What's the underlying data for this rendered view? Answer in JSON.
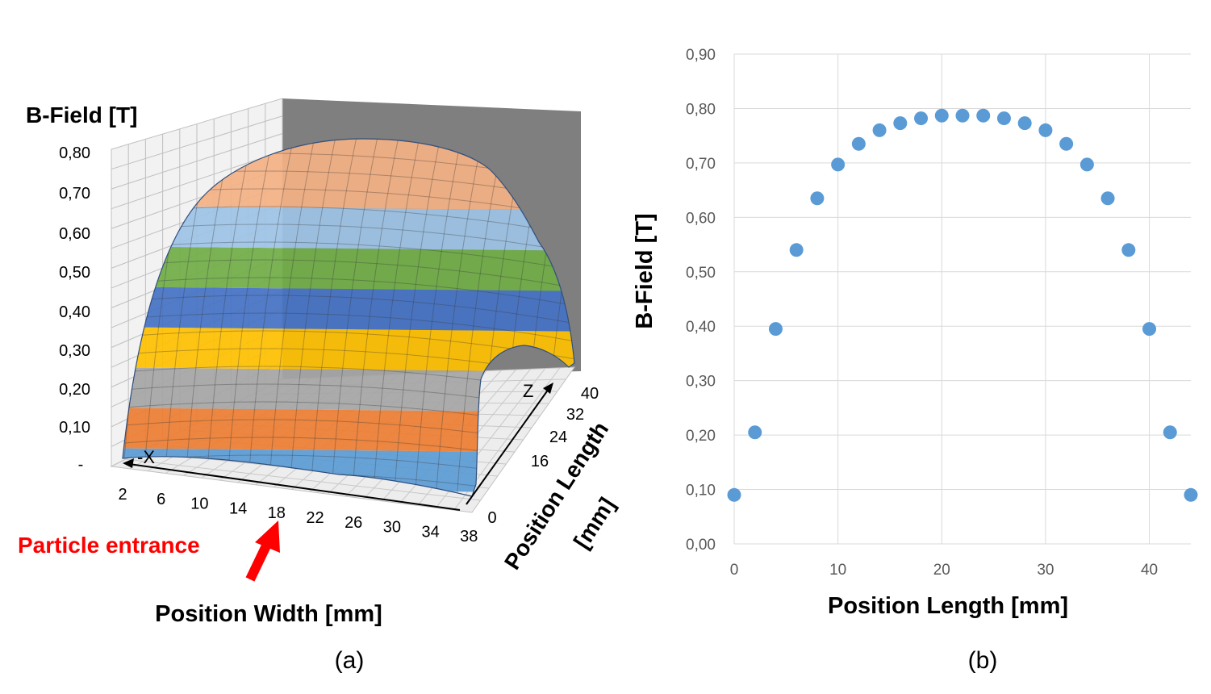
{
  "panel_a": {
    "caption": "(a)",
    "ylabel": "B-Field [T]",
    "yticks": [
      "-",
      "0,10",
      "0,20",
      "0,30",
      "0,40",
      "0,50",
      "0,60",
      "0,70",
      "0,80"
    ],
    "width_ticks": [
      "2",
      "6",
      "10",
      "14",
      "18",
      "22",
      "26",
      "30",
      "34",
      "38"
    ],
    "length_ticks": [
      "0",
      "16",
      "24",
      "32",
      "40"
    ],
    "width_label": "Position Width [mm]",
    "length_label_line1": "Position Length",
    "length_label_line2": "[mm]",
    "axis_x_marker": "-X",
    "axis_z_marker": "Z",
    "annotation": "Particle entrance",
    "band_colors": [
      "#5b9bd5",
      "#ed7d31",
      "#a5a5a5",
      "#ffc000",
      "#4472c4",
      "#70ad47",
      "#9dc3e6",
      "#f4b183"
    ],
    "annotation_color": "#ff0000"
  },
  "chart_data": [
    {
      "type": "surface",
      "title": "",
      "ylabel": "B-Field [T]",
      "xlabel": "Position Width [mm]",
      "zlabel": "Position Length [mm]",
      "zlim": [
        0,
        0.8
      ],
      "width_categories": [
        2,
        6,
        10,
        14,
        18,
        22,
        26,
        30,
        34,
        38
      ],
      "length_categories": [
        0,
        16,
        24,
        32,
        40
      ],
      "value_bands": [
        0,
        0.1,
        0.2,
        0.3,
        0.4,
        0.5,
        0.6,
        0.7,
        0.8
      ]
    },
    {
      "type": "scatter",
      "title": "",
      "caption": "(b)",
      "xlabel": "Position Length [mm]",
      "ylabel": "B-Field [T]",
      "xlim": [
        0,
        44
      ],
      "ylim": [
        0,
        0.9
      ],
      "xticks": [
        "0",
        "10",
        "20",
        "30",
        "40"
      ],
      "yticks": [
        "0,00",
        "0,10",
        "0,20",
        "0,30",
        "0,40",
        "0,50",
        "0,60",
        "0,70",
        "0,80",
        "0,90"
      ],
      "grid": true,
      "marker_color": "#5b9bd5",
      "x": [
        0,
        2,
        4,
        6,
        8,
        10,
        12,
        14,
        16,
        18,
        20,
        22,
        24,
        26,
        28,
        30,
        32,
        34,
        36,
        38,
        40,
        42,
        44
      ],
      "y": [
        0.09,
        0.205,
        0.395,
        0.54,
        0.635,
        0.697,
        0.735,
        0.76,
        0.773,
        0.782,
        0.787,
        0.787,
        0.787,
        0.782,
        0.773,
        0.76,
        0.735,
        0.697,
        0.635,
        0.54,
        0.395,
        0.205,
        0.09
      ]
    }
  ]
}
